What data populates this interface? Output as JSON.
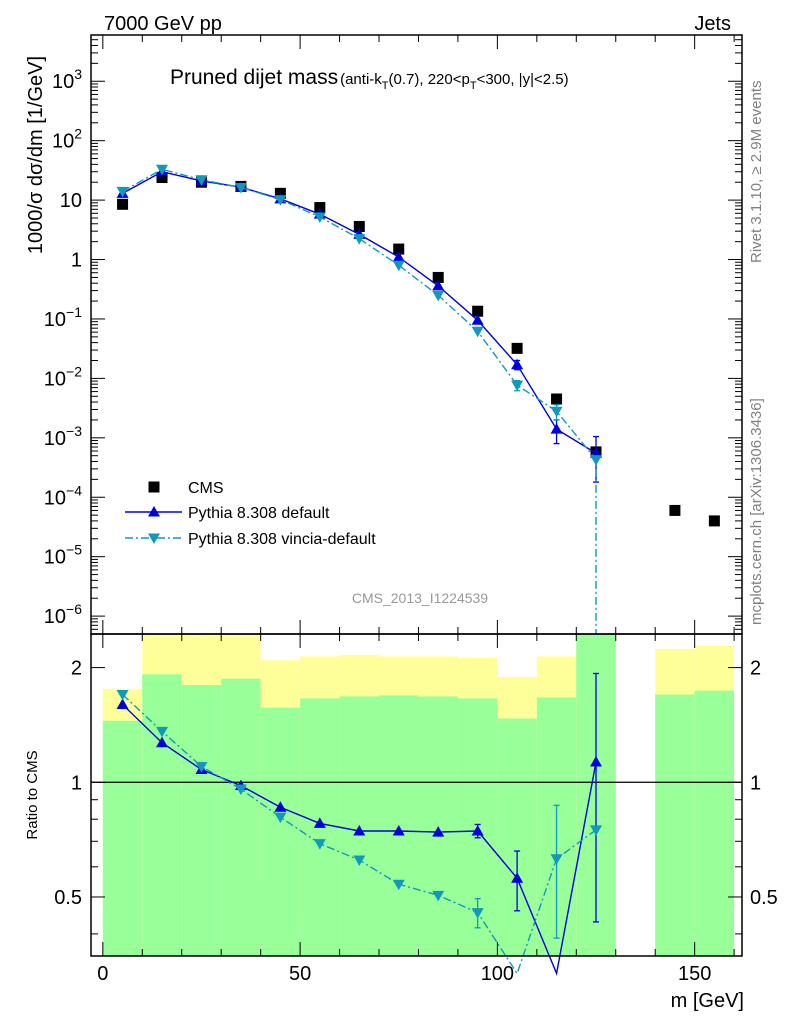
{
  "header": {
    "left": "7000 GeV pp",
    "right": "Jets",
    "analysis_id": "CMS_2013_I1224539"
  },
  "side_labels": {
    "rivet": "Rivet 3.1.10, ≥ 2.9M events",
    "mcplots": "mcplots.cern.ch [arXiv:1306.3436]"
  },
  "colors": {
    "cms": "#000000",
    "default": "#0000dd",
    "vincia": "#1199bb",
    "band_stat": "#99ff99",
    "band_total": "#ffff99"
  },
  "chart_data": [
    {
      "type": "scatter",
      "title": "Pruned dijet mass",
      "title_suffix": "(anti-kT(0.7), 220<pT<300, |y|<2.5)",
      "ylabel": "1000/σ dσ/dm [1/GeV]",
      "yscale": "log",
      "ylim": [
        5e-07,
        6000
      ],
      "xlim": [
        -3,
        162
      ],
      "legend_position": "bottom-left",
      "legend": [
        "CMS",
        "Pythia 8.308 default",
        "Pythia 8.308 vincia-default"
      ],
      "ytick_labels": [
        "10^-6",
        "10^-5",
        "10^-4",
        "10^-3",
        "10^-2",
        "10^-1",
        "1",
        "10",
        "10^2",
        "10^3"
      ],
      "series": [
        {
          "name": "CMS",
          "x": [
            5,
            15,
            25,
            35,
            45,
            55,
            65,
            75,
            85,
            95,
            105,
            115,
            125,
            145,
            155
          ],
          "y": [
            8.5,
            24,
            20,
            17,
            13,
            7.5,
            3.6,
            1.5,
            0.5,
            0.135,
            0.032,
            0.0045,
            0.00058,
            6e-05,
            4e-05
          ]
        },
        {
          "name": "Pythia 8.308 default",
          "x": [
            5,
            15,
            25,
            35,
            45,
            55,
            65,
            75,
            85,
            95,
            105,
            115,
            125
          ],
          "y": [
            13,
            30,
            21,
            16.5,
            10.5,
            5.8,
            2.65,
            1.1,
            0.36,
            0.095,
            0.017,
            0.0014,
            0.00055
          ],
          "yerr_low": [
            0,
            0,
            0,
            0,
            0,
            0,
            0,
            0,
            0,
            0,
            0.003,
            0.0006,
            0.00037
          ],
          "yerr_high": [
            0,
            0,
            0,
            0,
            0,
            0,
            0,
            0,
            0,
            0,
            0.003,
            0.0006,
            0.0005
          ]
        },
        {
          "name": "Pythia 8.308 vincia-default",
          "x": [
            5,
            15,
            25,
            35,
            45,
            55,
            65,
            75,
            85,
            95,
            105,
            115,
            125
          ],
          "y": [
            14,
            33,
            22,
            16.3,
            10.2,
            5.2,
            2.25,
            0.8,
            0.25,
            0.062,
            0.0077,
            0.0028,
            0.00043
          ],
          "yerr_low": [
            0,
            0,
            0,
            0,
            0,
            0,
            0,
            0,
            0,
            0,
            0.0015,
            0.0008,
            0
          ],
          "yerr_high": [
            0,
            0,
            0,
            0,
            0,
            0,
            0,
            0,
            0,
            0,
            0.0015,
            0.0008,
            0
          ],
          "drop_to_floor_after": 125
        }
      ]
    },
    {
      "type": "line",
      "xlabel": "m [GeV]",
      "ylabel": "Ratio to CMS",
      "yscale": "log",
      "ylim": [
        0.35,
        2.45
      ],
      "xlim": [
        -3,
        162
      ],
      "xticks": [
        0,
        50,
        100,
        150
      ],
      "yticks": [
        0.5,
        1,
        2
      ],
      "reference_line": 1,
      "bands": {
        "bin_edges": [
          0,
          10,
          20,
          30,
          40,
          50,
          60,
          70,
          80,
          90,
          100,
          110,
          120,
          130,
          140,
          150,
          160
        ],
        "stat_low": [
          0.33,
          0.33,
          0.33,
          0.33,
          0.33,
          0.33,
          0.33,
          0.33,
          0.33,
          0.33,
          0.33,
          0.33,
          0.33,
          null,
          0.33,
          0.33
        ],
        "stat_high": [
          1.45,
          1.92,
          1.8,
          1.87,
          1.57,
          1.66,
          1.68,
          1.69,
          1.68,
          1.66,
          1.47,
          1.67,
          3.0,
          null,
          1.7,
          1.74
        ],
        "total_low": [
          0.33,
          0.33,
          0.33,
          0.33,
          0.55,
          0.47,
          0.46,
          0.47,
          0.66,
          0.7,
          0.68,
          0.33,
          0.33,
          null,
          0.33,
          0.33
        ],
        "total_high": [
          1.76,
          3.0,
          3.0,
          3.0,
          2.09,
          2.14,
          2.16,
          2.14,
          2.14,
          2.12,
          1.89,
          2.14,
          3.0,
          null,
          2.24,
          2.28
        ]
      },
      "series": [
        {
          "name": "Pythia 8.308 default",
          "x": [
            5,
            15,
            25,
            35,
            45,
            55,
            65,
            75,
            85,
            95,
            105,
            115,
            125
          ],
          "y": [
            1.6,
            1.27,
            1.08,
            0.98,
            0.86,
            0.78,
            0.745,
            0.745,
            0.74,
            0.745,
            0.56,
            0.3,
            1.13
          ],
          "yerr_low": [
            0,
            0,
            0,
            0,
            0,
            0,
            0,
            0,
            0,
            0.03,
            0.1,
            0,
            0.7
          ],
          "yerr_high": [
            0,
            0,
            0,
            0,
            0,
            0,
            0,
            0,
            0,
            0.03,
            0.1,
            0,
            0.8
          ]
        },
        {
          "name": "Pythia 8.308 vincia-default",
          "x": [
            5,
            15,
            25,
            35,
            45,
            55,
            65,
            75,
            85,
            95,
            105,
            115,
            125
          ],
          "y": [
            1.7,
            1.36,
            1.1,
            0.96,
            0.81,
            0.69,
            0.625,
            0.54,
            0.505,
            0.455,
            0.24,
            0.63,
            0.75
          ],
          "yerr_low": [
            0,
            0,
            0,
            0,
            0,
            0,
            0,
            0,
            0,
            0.04,
            0,
            0.24,
            0
          ],
          "yerr_high": [
            0,
            0,
            0,
            0,
            0,
            0,
            0,
            0,
            0,
            0.04,
            0,
            0.24,
            0
          ]
        }
      ]
    }
  ]
}
